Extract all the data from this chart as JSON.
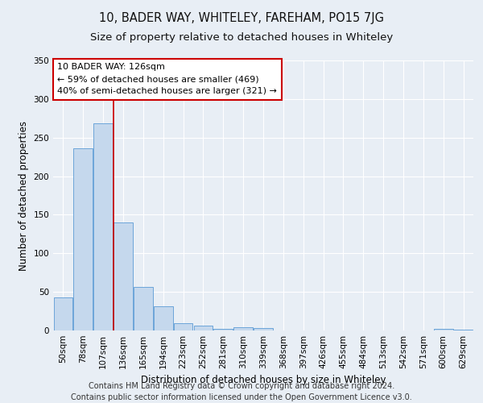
{
  "title": "10, BADER WAY, WHITELEY, FAREHAM, PO15 7JG",
  "subtitle": "Size of property relative to detached houses in Whiteley",
  "xlabel": "Distribution of detached houses by size in Whiteley",
  "ylabel": "Number of detached properties",
  "footer_line1": "Contains HM Land Registry data © Crown copyright and database right 2024.",
  "footer_line2": "Contains public sector information licensed under the Open Government Licence v3.0.",
  "bar_labels": [
    "50sqm",
    "78sqm",
    "107sqm",
    "136sqm",
    "165sqm",
    "194sqm",
    "223sqm",
    "252sqm",
    "281sqm",
    "310sqm",
    "339sqm",
    "368sqm",
    "397sqm",
    "426sqm",
    "455sqm",
    "484sqm",
    "513sqm",
    "542sqm",
    "571sqm",
    "600sqm",
    "629sqm"
  ],
  "bar_values": [
    43,
    236,
    269,
    140,
    56,
    31,
    9,
    6,
    2,
    4,
    3,
    0,
    0,
    0,
    0,
    0,
    0,
    0,
    0,
    2,
    1
  ],
  "bar_color": "#c5d8ed",
  "bar_edge_color": "#5b9bd5",
  "ylim": [
    0,
    350
  ],
  "yticks": [
    0,
    50,
    100,
    150,
    200,
    250,
    300,
    350
  ],
  "annotation_text": "10 BADER WAY: 126sqm\n← 59% of detached houses are smaller (469)\n40% of semi-detached houses are larger (321) →",
  "annotation_box_color": "#ffffff",
  "annotation_border_color": "#cc0000",
  "background_color": "#e8eef5",
  "plot_bg_color": "#e8eef5",
  "grid_color": "#ffffff",
  "title_fontsize": 10.5,
  "subtitle_fontsize": 9.5,
  "axis_label_fontsize": 8.5,
  "tick_fontsize": 7.5,
  "footer_fontsize": 7,
  "annotation_fontsize": 8
}
